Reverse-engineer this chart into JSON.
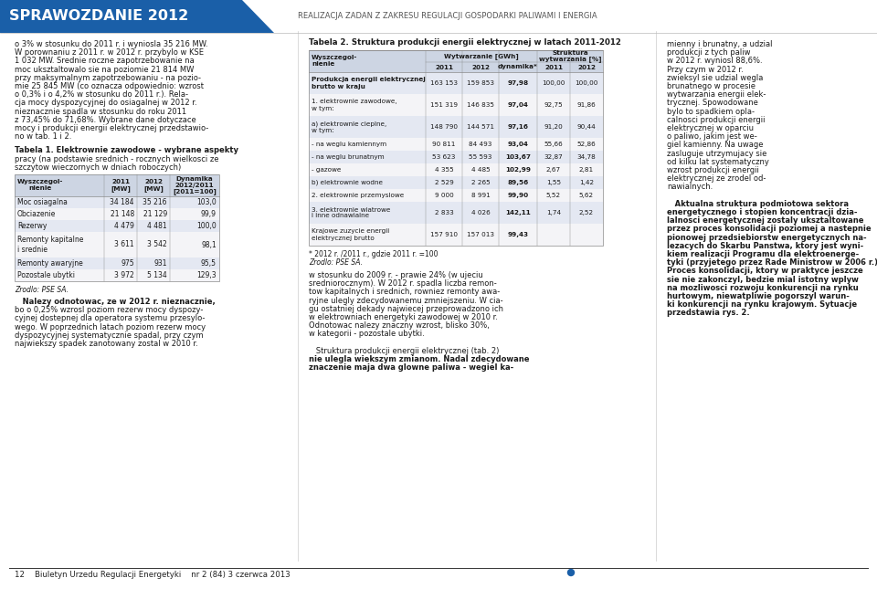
{
  "header_title": "SPRAWOZDANIE 2012",
  "header_subtitle": "REALIZACJA ZADAN Z ZAKRESU REGULACJI GOSPODARKI PALIWAMI I ENERGIA",
  "header_bg_color": "#1a5fa8",
  "header_title_color": "#ffffff",
  "footer_text": "12    Biuletyn Urzedu Regulacji Energetyki    nr 2 (84) 3 czerwca 2013",
  "footer_dot_color": "#1a5fa8",
  "col1_text": [
    "o 3% w stosunku do 2011 r. i wyniosla 35 216 MW.",
    "W porownaniu z 2011 r. w 2012 r. przybylo w KSE",
    "1 032 MW. Srednie roczne zapotrzebowanie na",
    "moc uksztaltowalo sie na poziomie 21 814 MW",
    "przy maksymalnym zapotrzebowaniu - na pozio-",
    "mie 25 845 MW (co oznacza odpowiednio: wzrost",
    "o 0,3% i o 4,2% w stosunku do 2011 r.). Rela-",
    "cja mocy dyspozycyjnej do osiagalnej w 2012 r.",
    "nieznacznie spadla w stosunku do roku 2011",
    "z 73,45% do 71,68%. Wybrane dane dotyczace",
    "mocy i produkcji energii elektrycznej przedstawio-",
    "no w tab. 1 i 2."
  ],
  "tabela1_title": "Tabela 1. Elektrownie zawodowe - wybrane aspekty",
  "tabela1_subtitle": "pracy (na podstawie srednich - rocznych wielkosci ze",
  "tabela1_subtitle2": "szczytow wieczornych w dniach roboczych)",
  "tabela1_rows": [
    [
      "Moc osiagalna",
      "34 184",
      "35 216",
      "103,0"
    ],
    [
      "Obciazenie",
      "21 148",
      "21 129",
      "99,9"
    ],
    [
      "Rezerwy",
      "4 479",
      "4 481",
      "100,0"
    ],
    [
      "Remonty kapitalne\ni srednie",
      "3 611",
      "3 542",
      "98,1"
    ],
    [
      "Remonty awaryjne",
      "975",
      "931",
      "95,5"
    ],
    [
      "Pozostale ubytki",
      "3 972",
      "5 134",
      "129,3"
    ]
  ],
  "tabela1_source": "Zrodlo: PSE SA.",
  "col1_para2": [
    "   Nalezy odnotowac, ze w 2012 r. nieznacznie,",
    "bo o 0,25% wzrosl poziom rezerw mocy dyspozy-",
    "cyjnej dostepnej dla operatora systemu przesylo-",
    "wego. W poprzednich latach poziom rezerw mocy",
    "dyspozycyjnej systematycznie spadal, przy czym",
    "najwiekszy spadek zanotowany zostal w 2010 r."
  ],
  "tabela2_title": "Tabela 2. Struktura produkcji energii elektrycznej w latach 2011-2012",
  "tabela2_rows": [
    [
      "Produkcja energii elektrycznej\nbrutto w kraju",
      "163 153",
      "159 853",
      "97,98",
      "100,00",
      "100,00"
    ],
    [
      "1. elektrownie zawodowe,\nw tym:",
      "151 319",
      "146 835",
      "97,04",
      "92,75",
      "91,86"
    ],
    [
      "a) elektrownie cieplne,\nw tym:",
      "148 790",
      "144 571",
      "97,16",
      "91,20",
      "90,44"
    ],
    [
      "- na weglu kamiennym",
      "90 811",
      "84 493",
      "93,04",
      "55,66",
      "52,86"
    ],
    [
      "- na weglu brunatnym",
      "53 623",
      "55 593",
      "103,67",
      "32,87",
      "34,78"
    ],
    [
      "- gazowe",
      "4 355",
      "4 485",
      "102,99",
      "2,67",
      "2,81"
    ],
    [
      "b) elektrownie wodne",
      "2 529",
      "2 265",
      "89,56",
      "1,55",
      "1,42"
    ],
    [
      "2. elektrownie przemyslowe",
      "9 000",
      "8 991",
      "99,90",
      "5,52",
      "5,62"
    ],
    [
      "3. elektrownie wiatrowe\ni inne odnawialne",
      "2 833",
      "4 026",
      "142,11",
      "1,74",
      "2,52"
    ],
    [
      "Krajowe zuzycie energii\nelektrycznej brutto",
      "157 910",
      "157 013",
      "99,43",
      "",
      ""
    ]
  ],
  "col3_para": [
    "mienny i brunatny, a udzial",
    "produkcji z tych paliw",
    "w 2012 r. wyniosl 88,6%.",
    "Przy czym w 2012 r.",
    "zwieksyl sie udzial wegla",
    "brunatnego w procesie",
    "wytwarzania energii elek-",
    "trycznej. Spowodowane",
    "bylo to spadkiem opla-",
    "calnosci produkcji energii",
    "elektrycznej w oparciu",
    "o paliwo, jakim jest we-",
    "giel kamienny. Na uwage",
    "zasluguje utrzymujacy sie",
    "od kilku lat systematyczny",
    "wzrost produkcji energii",
    "elektrycznej ze zrodel od-",
    "nawialnych.",
    "",
    "   Aktualna struktura podmiotowa sektora",
    "energetycznego i stopien koncentracji dzia-",
    "lalnosci energetycznej zostaly uksztaltowane",
    "przez proces konsolidacji poziomej a nastepnie",
    "pionowej przedsiebiorstw energetycznych na-",
    "lezacych do Skarbu Panstwa, ktory jest wyni-",
    "kiem realizacji Programu dla elektroenerge-",
    "tyki (przyjetego przez Rade Ministrow w 2006 r.).",
    "Proces konsolidacji, ktory w praktyce jeszcze",
    "sie nie zakonczyl, bedzie mial istotny wplyw",
    "na mozliwosci rozwoju konkurencji na rynku",
    "hurtowym, niewatpliwie pogorszyl warun-",
    "ki konkurencji na rynku krajowym. Sytuacje",
    "przedstawia rys. 2."
  ],
  "col2_para": [
    "w stosunku do 2009 r. - prawie 24% (w ujeciu",
    "sredniorocznym). W 2012 r. spadla liczba remon-",
    "tow kapitalnych i srednich, rowniez remonty awa-",
    "ryjne ulegly zdecydowanemu zmniejszeniu. W cia-",
    "gu ostatniej dekady najwiecej przeprowadzono ich",
    "w elektrowniach energetyki zawodowej w 2010 r.",
    "Odnotowac nalezy znaczny wzrost, blisko 30%,",
    "w kategorii - pozostale ubytki.",
    "",
    "   Struktura produkcji energii elektrycznej (tab. 2)",
    "nie ulegla wiekszym zmianom. Nadal zdecydowane",
    "znaczenie maja dwa glowne paliwa - wegiel ka-"
  ],
  "page_bg": "#ffffff",
  "text_color": "#1a1a1a"
}
